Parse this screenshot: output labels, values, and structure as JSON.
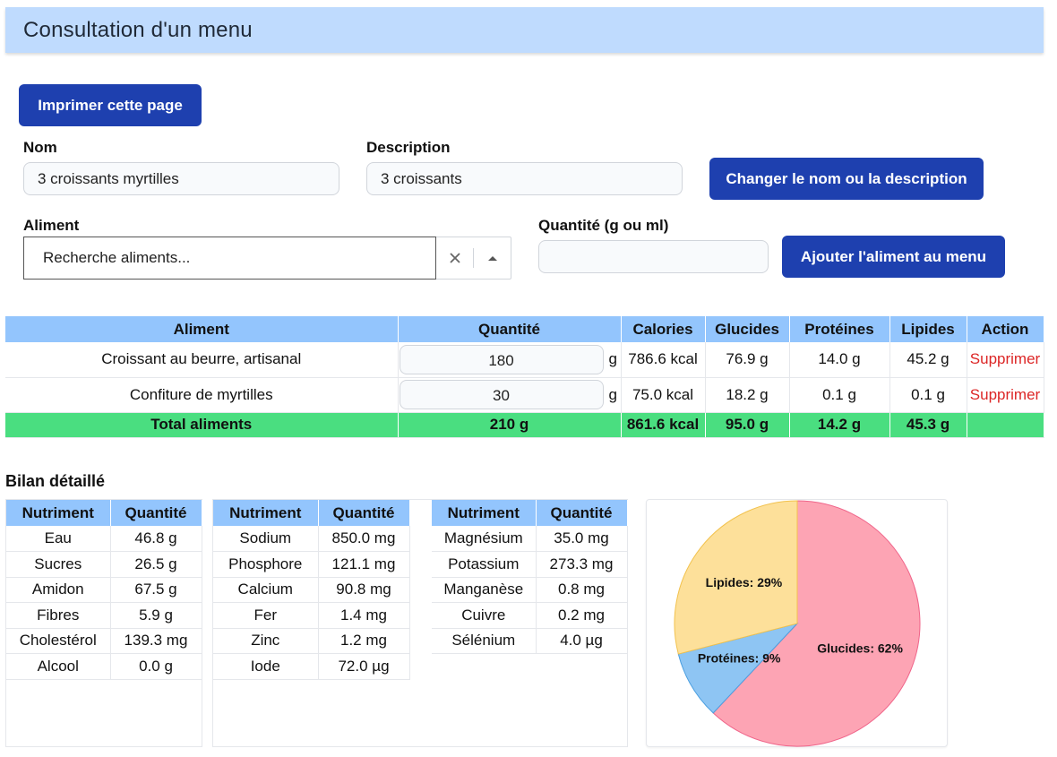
{
  "header": {
    "title": "Consultation d'un menu"
  },
  "actions": {
    "print_label": "Imprimer cette page",
    "change_label": "Changer le nom ou la description",
    "add_label": "Ajouter l'aliment au menu"
  },
  "form": {
    "name_label": "Nom",
    "name_value": "3 croissants myrtilles",
    "description_label": "Description",
    "description_value": "3 croissants",
    "food_label": "Aliment",
    "food_placeholder": "Recherche aliments...",
    "quantity_label": "Quantité (g ou ml)",
    "quantity_value": ""
  },
  "menu_table": {
    "headers": [
      "Aliment",
      "Quantité",
      "Calories",
      "Glucides",
      "Protéines",
      "Lipides",
      "Action"
    ],
    "rows": [
      {
        "aliment": "Croissant au beurre, artisanal",
        "quantite": "180",
        "unit": "g",
        "calories": "786.6 kcal",
        "glucides": "76.9 g",
        "proteines": "14.0 g",
        "lipides": "45.2 g",
        "action": "Supprimer"
      },
      {
        "aliment": "Confiture de myrtilles",
        "quantite": "30",
        "unit": "g",
        "calories": "75.0 kcal",
        "glucides": "18.2 g",
        "proteines": "0.1 g",
        "lipides": "0.1 g",
        "action": "Supprimer"
      }
    ],
    "total": {
      "label": "Total aliments",
      "quantite": "210 g",
      "calories": "861.6 kcal",
      "glucides": "95.0 g",
      "proteines": "14.2 g",
      "lipides": "45.3 g"
    }
  },
  "bilan": {
    "title": "Bilan détaillé",
    "col_nutriment": "Nutriment",
    "col_quantite": "Quantité",
    "table1": [
      [
        "Eau",
        "46.8 g"
      ],
      [
        "Sucres",
        "26.5 g"
      ],
      [
        "Amidon",
        "67.5 g"
      ],
      [
        "Fibres",
        "5.9 g"
      ],
      [
        "Cholestérol",
        "139.3 mg"
      ],
      [
        "Alcool",
        "0.0 g"
      ]
    ],
    "table2": [
      [
        "Sodium",
        "850.0 mg"
      ],
      [
        "Phosphore",
        "121.1 mg"
      ],
      [
        "Calcium",
        "90.8 mg"
      ],
      [
        "Fer",
        "1.4 mg"
      ],
      [
        "Zinc",
        "1.2 mg"
      ],
      [
        "Iode",
        "72.0 µg"
      ]
    ],
    "table3": [
      [
        "Magnésium",
        "35.0 mg"
      ],
      [
        "Potassium",
        "273.3 mg"
      ],
      [
        "Manganèse",
        "0.8 mg"
      ],
      [
        "Cuivre",
        "0.2 mg"
      ],
      [
        "Sélénium",
        "4.0 µg"
      ]
    ]
  },
  "chart_data": {
    "type": "pie",
    "categories": [
      "Glucides",
      "Protéines",
      "Lipides"
    ],
    "values": [
      62,
      9,
      29
    ],
    "labels": [
      "Glucides: 62%",
      "Protéines: 9%",
      "Lipides: 29%"
    ],
    "colors": [
      "#fda4b4",
      "#8ec5f3",
      "#fde09a"
    ],
    "stroke_colors": [
      "#f0658a",
      "#4b9fe0",
      "#f2c24e"
    ]
  }
}
